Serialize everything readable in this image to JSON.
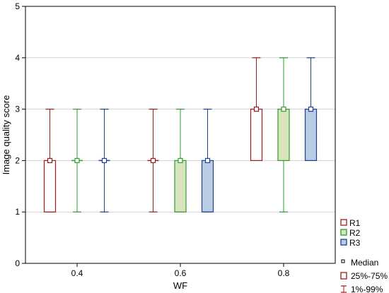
{
  "chart_data": {
    "type": "boxplot",
    "xlabel": "WF",
    "ylabel": "Image quality score",
    "ylim": [
      0,
      5
    ],
    "yticks": [
      0,
      1,
      2,
      3,
      4,
      5
    ],
    "grid": "horizontal",
    "categories": [
      "0.4",
      "0.6",
      "0.8"
    ],
    "legend_position": "right-bottom",
    "series": [
      {
        "name": "R1",
        "color": "#9b1c1c",
        "fill": "#ffffff",
        "boxes": [
          {
            "median": 2,
            "q1": 1,
            "q3": 2,
            "p1": 1,
            "p99": 3
          },
          {
            "median": 2,
            "q1": 2,
            "q3": 2,
            "p1": 1,
            "p99": 3
          },
          {
            "median": 3,
            "q1": 2,
            "q3": 3,
            "p1": 2,
            "p99": 4
          }
        ]
      },
      {
        "name": "R2",
        "color": "#2e9c2e",
        "fill": "#d7e4bd",
        "boxes": [
          {
            "median": 2,
            "q1": 2,
            "q3": 2,
            "p1": 1,
            "p99": 3
          },
          {
            "median": 2,
            "q1": 1,
            "q3": 2,
            "p1": 1,
            "p99": 3
          },
          {
            "median": 3,
            "q1": 2,
            "q3": 3,
            "p1": 1,
            "p99": 4
          }
        ]
      },
      {
        "name": "R3",
        "color": "#1f3f8f",
        "fill": "#b8cce4",
        "boxes": [
          {
            "median": 2,
            "q1": 2,
            "q3": 2,
            "p1": 1,
            "p99": 3
          },
          {
            "median": 2,
            "q1": 1,
            "q3": 2,
            "p1": 1,
            "p99": 3
          },
          {
            "median": 3,
            "q1": 2,
            "q3": 3,
            "p1": 2,
            "p99": 4
          }
        ]
      }
    ],
    "legend_stats": [
      {
        "key": "median",
        "label": "Median"
      },
      {
        "key": "box",
        "label": "25%-75%"
      },
      {
        "key": "whisker",
        "label": "1%-99%"
      }
    ]
  }
}
